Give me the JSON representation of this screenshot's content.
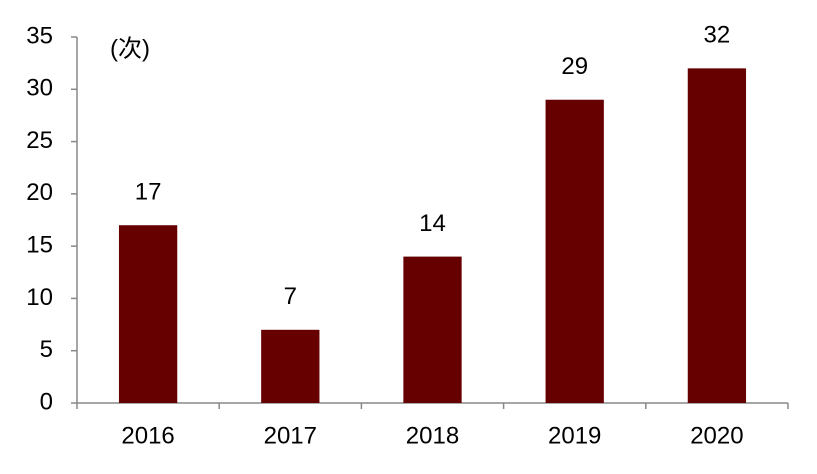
{
  "chart_data": {
    "type": "bar",
    "unit_label": "(次)",
    "categories": [
      "2016",
      "2017",
      "2018",
      "2019",
      "2020"
    ],
    "values": [
      17,
      7,
      14,
      29,
      32
    ],
    "color": "#660000",
    "ylim": [
      0,
      35
    ],
    "yticks": [
      0,
      5,
      10,
      15,
      20,
      25,
      30,
      35
    ],
    "grid": false
  }
}
